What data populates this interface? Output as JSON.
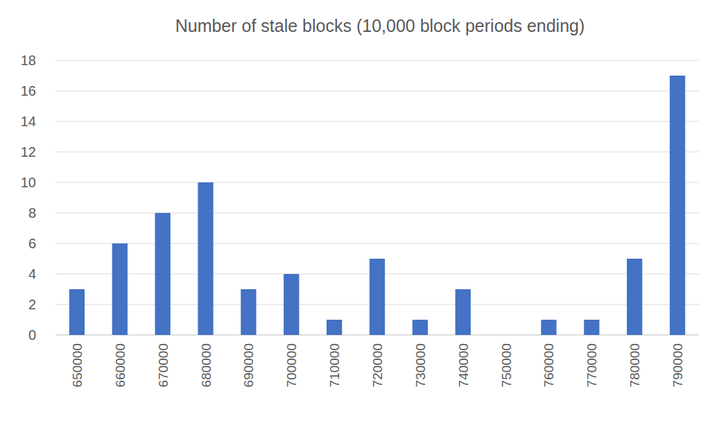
{
  "chart_data": {
    "type": "bar",
    "title": "Number of stale blocks (10,000 block periods ending)",
    "categories": [
      "650000",
      "660000",
      "670000",
      "680000",
      "690000",
      "700000",
      "710000",
      "720000",
      "730000",
      "740000",
      "750000",
      "760000",
      "770000",
      "780000",
      "790000"
    ],
    "values": [
      3,
      6,
      8,
      10,
      3,
      4,
      1,
      5,
      1,
      3,
      0,
      1,
      1,
      5,
      17
    ],
    "color": "#4472c4",
    "ylim": [
      0,
      18
    ],
    "yticks": [
      0,
      2,
      4,
      6,
      8,
      10,
      12,
      14,
      16,
      18
    ],
    "grid": true
  }
}
